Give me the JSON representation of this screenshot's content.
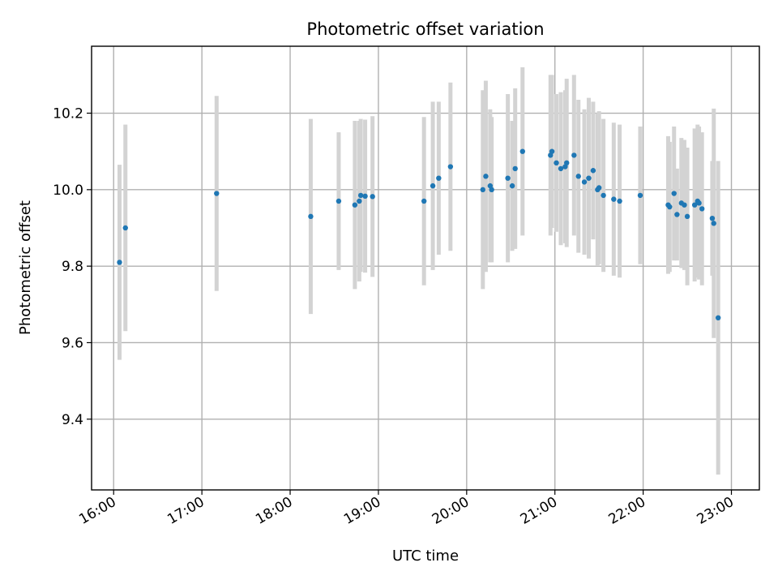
{
  "chart_data": {
    "type": "scatter",
    "title": "Photometric offset variation",
    "xlabel": "UTC time",
    "ylabel": "Photometric offset",
    "x_unit": "UTC hours",
    "xlim": [
      "15:45",
      "23:19"
    ],
    "ylim": [
      9.215,
      10.375
    ],
    "x_ticks": [
      "16:00",
      "17:00",
      "18:00",
      "19:00",
      "20:00",
      "21:00",
      "22:00",
      "23:00"
    ],
    "y_ticks": [
      "9.4",
      "9.6",
      "9.8",
      "10.0",
      "10.2"
    ],
    "grid": true,
    "legend": "none",
    "colors": {
      "points": "#1f77b4",
      "errorbars": "#d3d3d3",
      "grid": "#b0b0b0",
      "axes": "#000000"
    },
    "series": [
      {
        "x": [
          "16:04",
          "16:08",
          "17:10",
          "18:14",
          "18:33",
          "18:44",
          "18:47",
          "18:48",
          "18:51",
          "18:56",
          "19:31",
          "19:37",
          "19:41",
          "19:49",
          "20:11",
          "20:13",
          "20:16",
          "20:17",
          "20:28",
          "20:31",
          "20:33",
          "20:38",
          "20:57",
          "20:58",
          "21:01",
          "21:04",
          "21:07",
          "21:08",
          "21:13",
          "21:16",
          "21:20",
          "21:23",
          "21:26",
          "21:29",
          "21:30",
          "21:33",
          "21:40",
          "21:44",
          "21:58",
          "22:17",
          "22:18",
          "22:21",
          "22:23",
          "22:26",
          "22:28",
          "22:30",
          "22:35",
          "22:37",
          "22:38",
          "22:40",
          "22:47",
          "22:48",
          "22:51"
        ],
        "y": [
          9.81,
          9.9,
          9.99,
          9.93,
          9.97,
          9.96,
          9.97,
          9.985,
          9.983,
          9.982,
          9.97,
          10.01,
          10.03,
          10.06,
          10.0,
          10.035,
          10.01,
          10.0,
          10.03,
          10.01,
          10.055,
          10.1,
          10.09,
          10.1,
          10.07,
          10.055,
          10.06,
          10.07,
          10.09,
          10.035,
          10.02,
          10.03,
          10.05,
          10.0,
          10.005,
          9.985,
          9.975,
          9.97,
          9.985,
          9.96,
          9.955,
          9.99,
          9.935,
          9.965,
          9.96,
          9.93,
          9.96,
          9.97,
          9.965,
          9.95,
          9.925,
          9.912,
          9.665
        ],
        "yerr": [
          0.255,
          0.27,
          0.255,
          0.255,
          0.18,
          0.22,
          0.21,
          0.2,
          0.2,
          0.21,
          0.22,
          0.22,
          0.2,
          0.22,
          0.26,
          0.25,
          0.2,
          0.19,
          0.22,
          0.17,
          0.21,
          0.22,
          0.21,
          0.2,
          0.18,
          0.2,
          0.2,
          0.22,
          0.21,
          0.2,
          0.19,
          0.21,
          0.18,
          0.2,
          0.2,
          0.2,
          0.2,
          0.2,
          0.18,
          0.18,
          0.17,
          0.175,
          0.12,
          0.17,
          0.17,
          0.18,
          0.2,
          0.2,
          0.2,
          0.2,
          0.15,
          0.3,
          0.41
        ]
      }
    ]
  }
}
